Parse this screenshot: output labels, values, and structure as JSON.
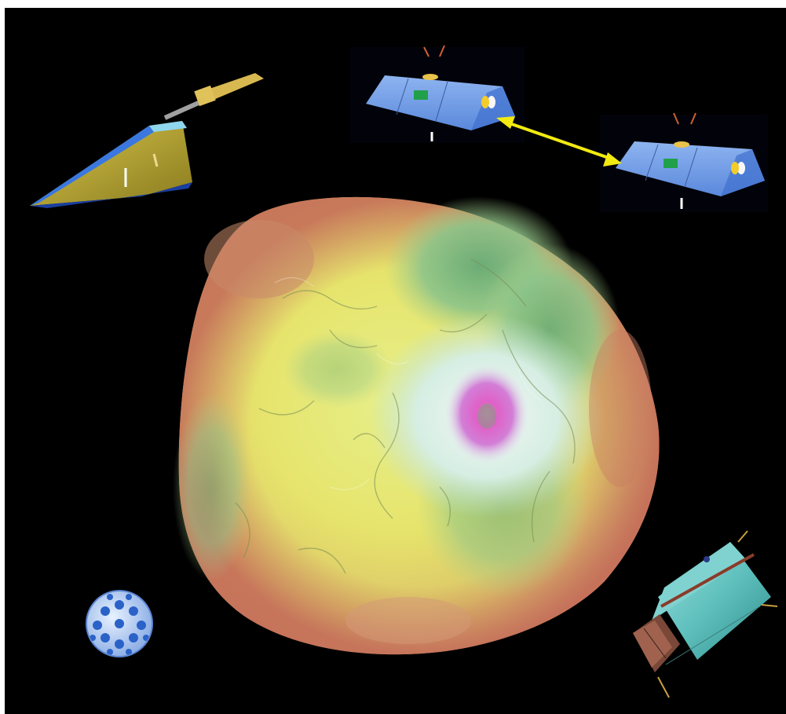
{
  "scene": {
    "subject": "geoid-globe",
    "objects": [
      "solar-panel-satellite",
      "twin-tracking-satellite-a",
      "twin-tracking-satellite-b",
      "laser-ranging-satellite",
      "cylindrical-satellite"
    ]
  },
  "colors": {
    "background": "#000000",
    "link_arrow": "#f2ea10",
    "satellite_blue": "#5b8fe0",
    "cylinder_teal": "#6fc9c7"
  }
}
